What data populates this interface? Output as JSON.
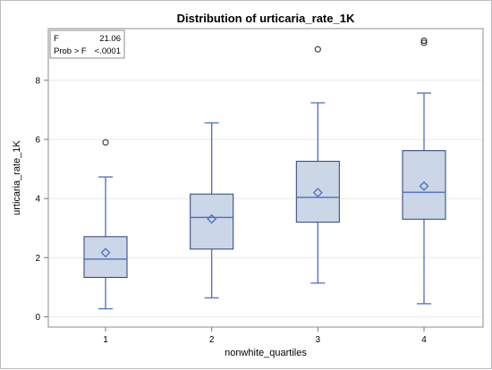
{
  "chart_data": {
    "type": "box",
    "title": "Distribution of urticaria_rate_1K",
    "xlabel": "nonwhite_quartiles",
    "ylabel": "urticaria_rate_1K",
    "categories": [
      "1",
      "2",
      "3",
      "4"
    ],
    "ylim": [
      -0.35,
      9.75
    ],
    "yticks": [
      0,
      2,
      4,
      6,
      8
    ],
    "grid": true,
    "inset": {
      "rows": [
        {
          "label": "F",
          "value": "21.06"
        },
        {
          "label": "Prob > F",
          "value": "<.0001"
        }
      ],
      "position": "top-left"
    },
    "boxes": [
      {
        "category": "1",
        "min": 0.27,
        "q1": 1.33,
        "median": 1.95,
        "q3": 2.71,
        "max": 4.73,
        "mean": 2.17,
        "outliers": [
          5.9
        ]
      },
      {
        "category": "2",
        "min": 0.64,
        "q1": 2.29,
        "median": 3.36,
        "q3": 4.15,
        "max": 6.56,
        "mean": 3.31,
        "outliers": []
      },
      {
        "category": "3",
        "min": 1.14,
        "q1": 3.2,
        "median": 4.04,
        "q3": 5.26,
        "max": 7.24,
        "mean": 4.2,
        "outliers": [
          9.05
        ]
      },
      {
        "category": "4",
        "min": 0.44,
        "q1": 3.3,
        "median": 4.21,
        "q3": 5.62,
        "max": 7.57,
        "mean": 4.42,
        "outliers": [
          9.27,
          9.34
        ]
      }
    ],
    "colors": {
      "box_fill": "#cbd6e6",
      "box_line": "#3a4f84",
      "whisker": "#4a6fc0",
      "median": "#4a6fc0",
      "mean_marker": "#4a6fc0",
      "outlier": "#333333",
      "grid": "#e8e8e8",
      "axis": "#777777"
    }
  }
}
